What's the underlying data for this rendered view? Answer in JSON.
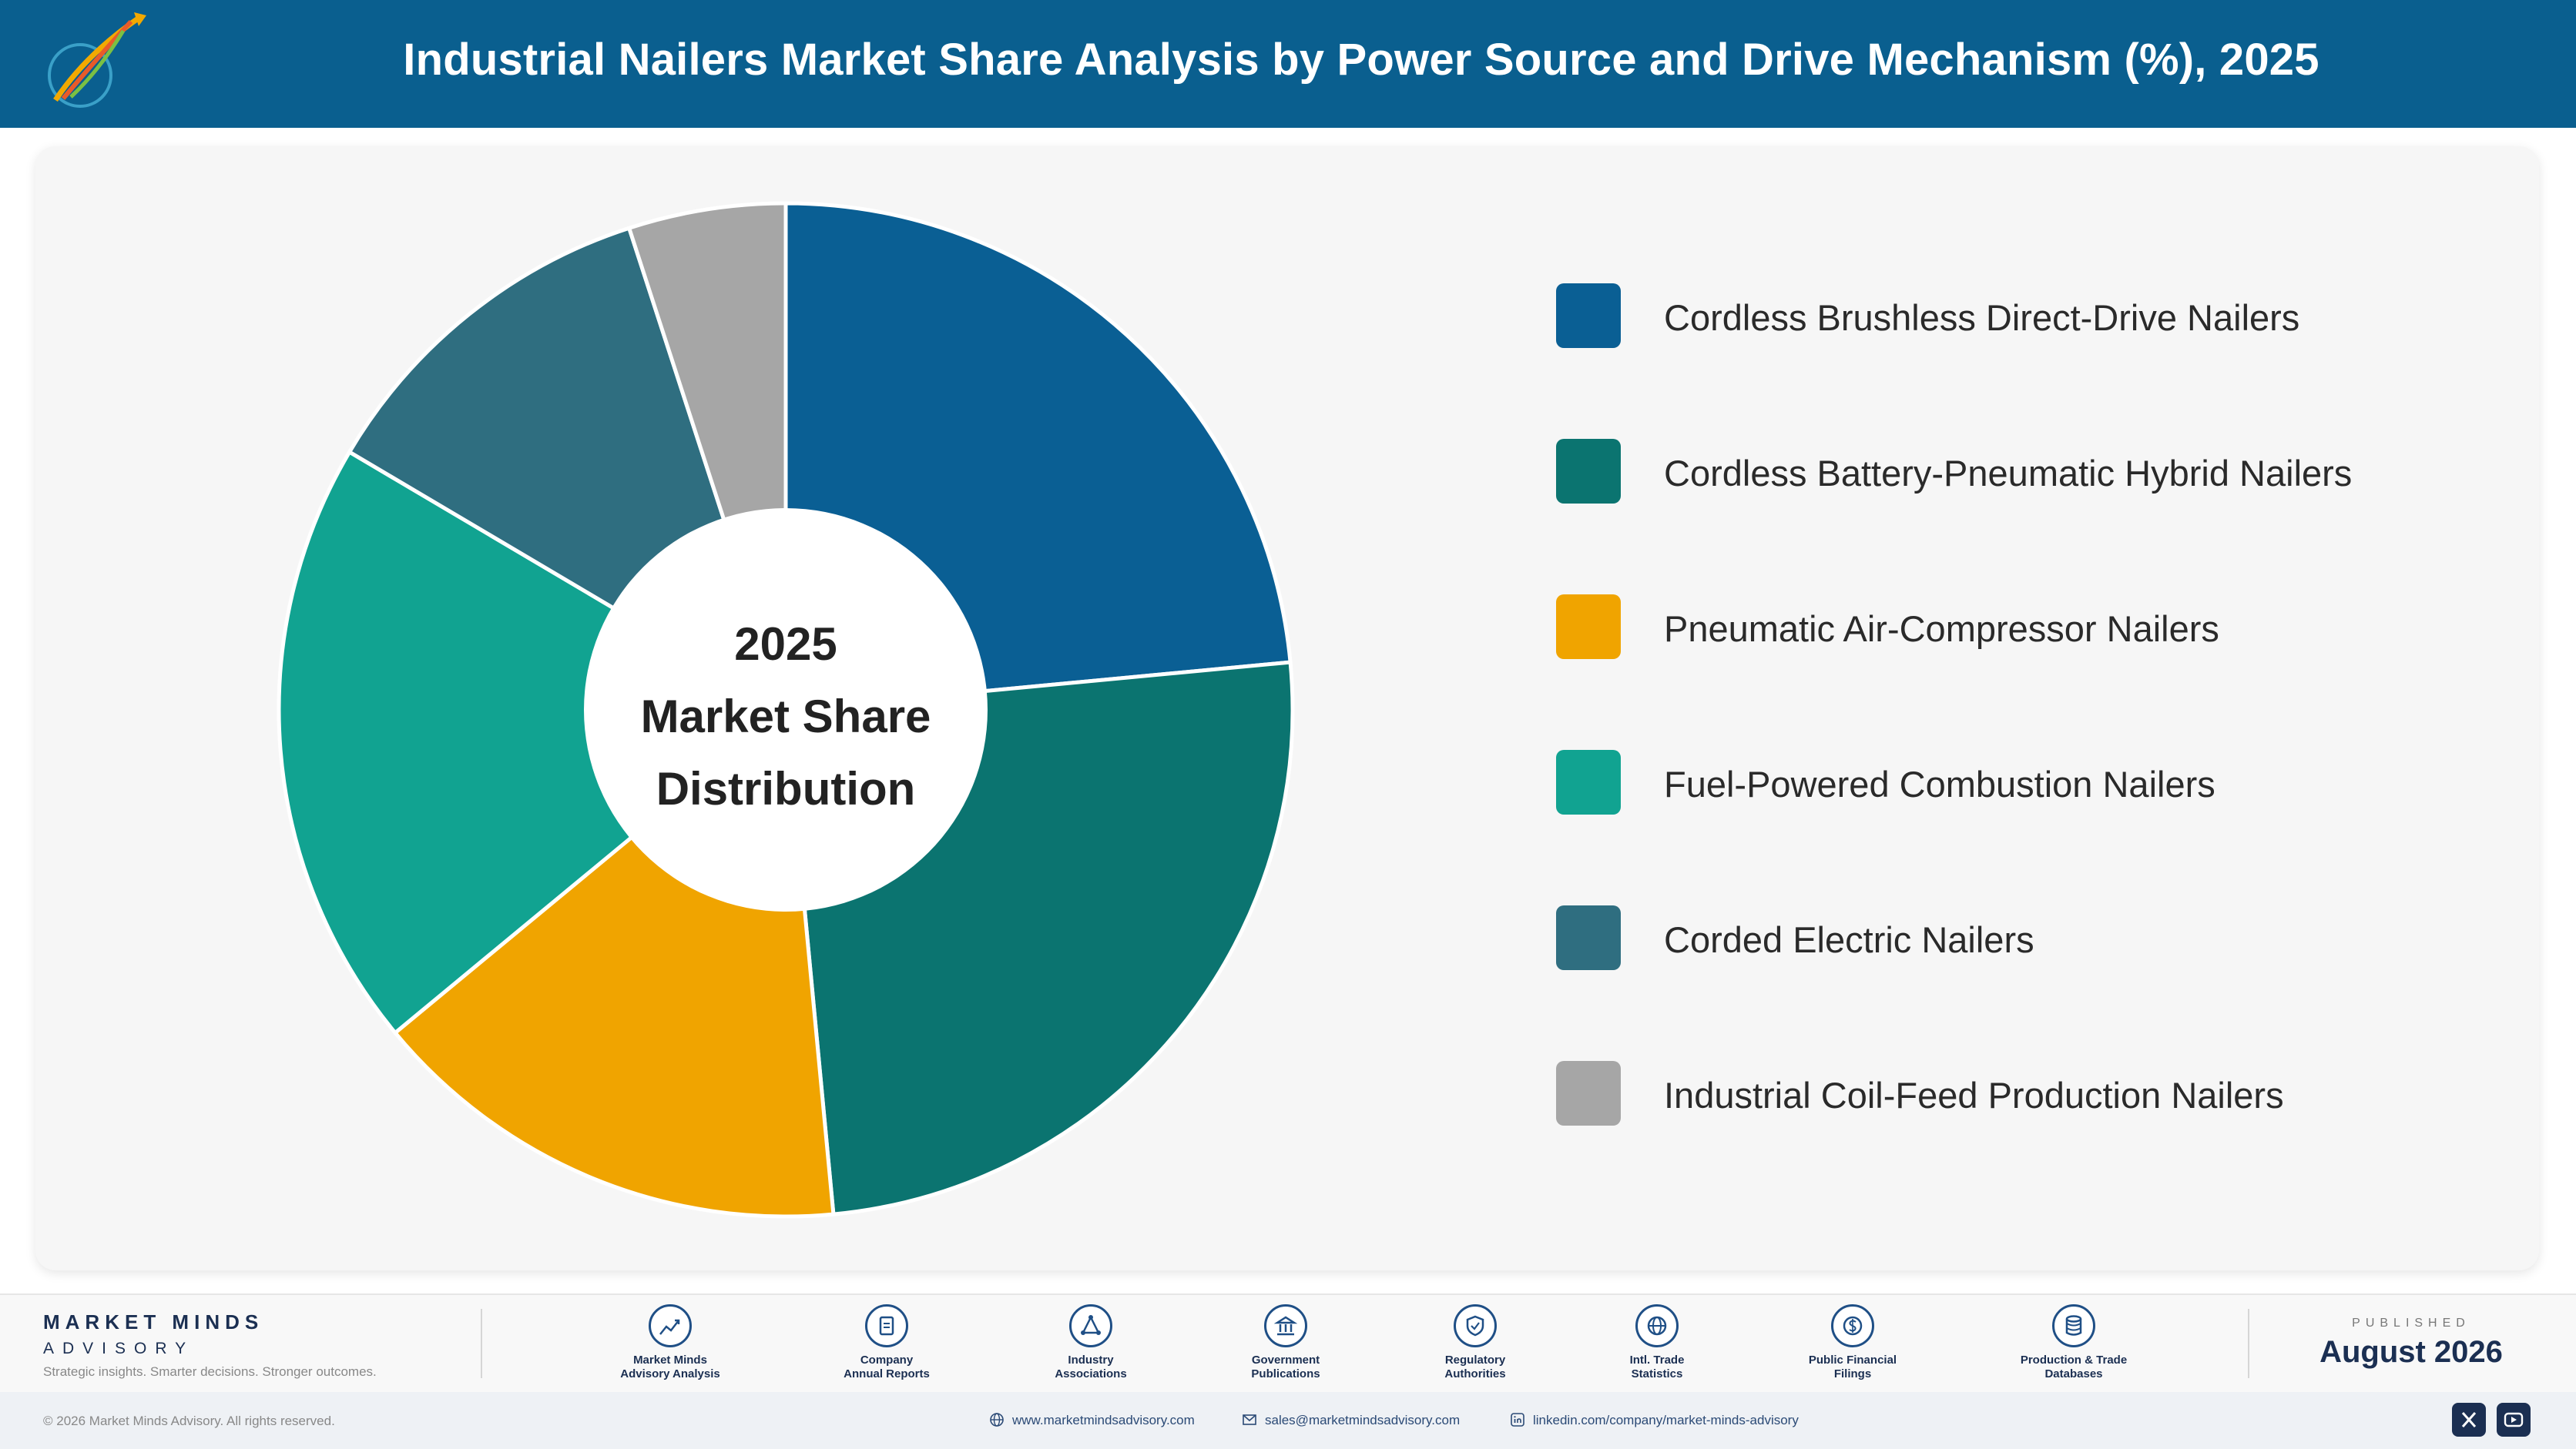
{
  "header": {
    "title": "Industrial Nailers Market Share Analysis by Power Source and Drive Mechanism (%), 2025"
  },
  "chart_data": {
    "type": "pie",
    "title": "Industrial Nailers Market Share Analysis by Power Source and Drive Mechanism (%), 2025",
    "donut": true,
    "center_label": [
      "2025",
      "Market Share",
      "Distribution"
    ],
    "legend_position": "right",
    "categories": [
      "Cordless Brushless Direct-Drive Nailers",
      "Cordless Battery-Pneumatic Hybrid Nailers",
      "Pneumatic Air-Compressor Nailers",
      "Fuel-Powered Combustion Nailers",
      "Corded Electric Nailers",
      "Industrial Coil-Feed Production Nailers"
    ],
    "values": [
      23.5,
      25.0,
      15.5,
      19.5,
      11.5,
      5.0
    ],
    "colors": [
      "#0a5f94",
      "#0b7470",
      "#f0a400",
      "#11a391",
      "#2f6e80",
      "#a6a6a6"
    ]
  },
  "footer": {
    "brand_name": "MARKET MINDS",
    "brand_sub": "ADVISORY",
    "brand_tag": "Strategic insights. Smarter decisions. Stronger outcomes.",
    "sources": [
      {
        "label": "Market Minds\nAdvisory Analysis",
        "icon": "trend-icon"
      },
      {
        "label": "Company\nAnnual Reports",
        "icon": "document-icon"
      },
      {
        "label": "Industry\nAssociations",
        "icon": "network-icon"
      },
      {
        "label": "Government\nPublications",
        "icon": "building-icon"
      },
      {
        "label": "Regulatory\nAuthorities",
        "icon": "shield-icon"
      },
      {
        "label": "Intl. Trade\nStatistics",
        "icon": "globe-icon"
      },
      {
        "label": "Public Financial\nFilings",
        "icon": "dollar-icon"
      },
      {
        "label": "Production & Trade\nDatabases",
        "icon": "database-icon"
      }
    ],
    "published_label": "PUBLISHED",
    "published_date": "August 2026",
    "copyright": "© 2026 Market Minds Advisory. All rights reserved.",
    "website": "www.marketmindsadvisory.com",
    "email": "sales@marketmindsadvisory.com",
    "linkedin": "linkedin.com/company/market-minds-advisory"
  }
}
